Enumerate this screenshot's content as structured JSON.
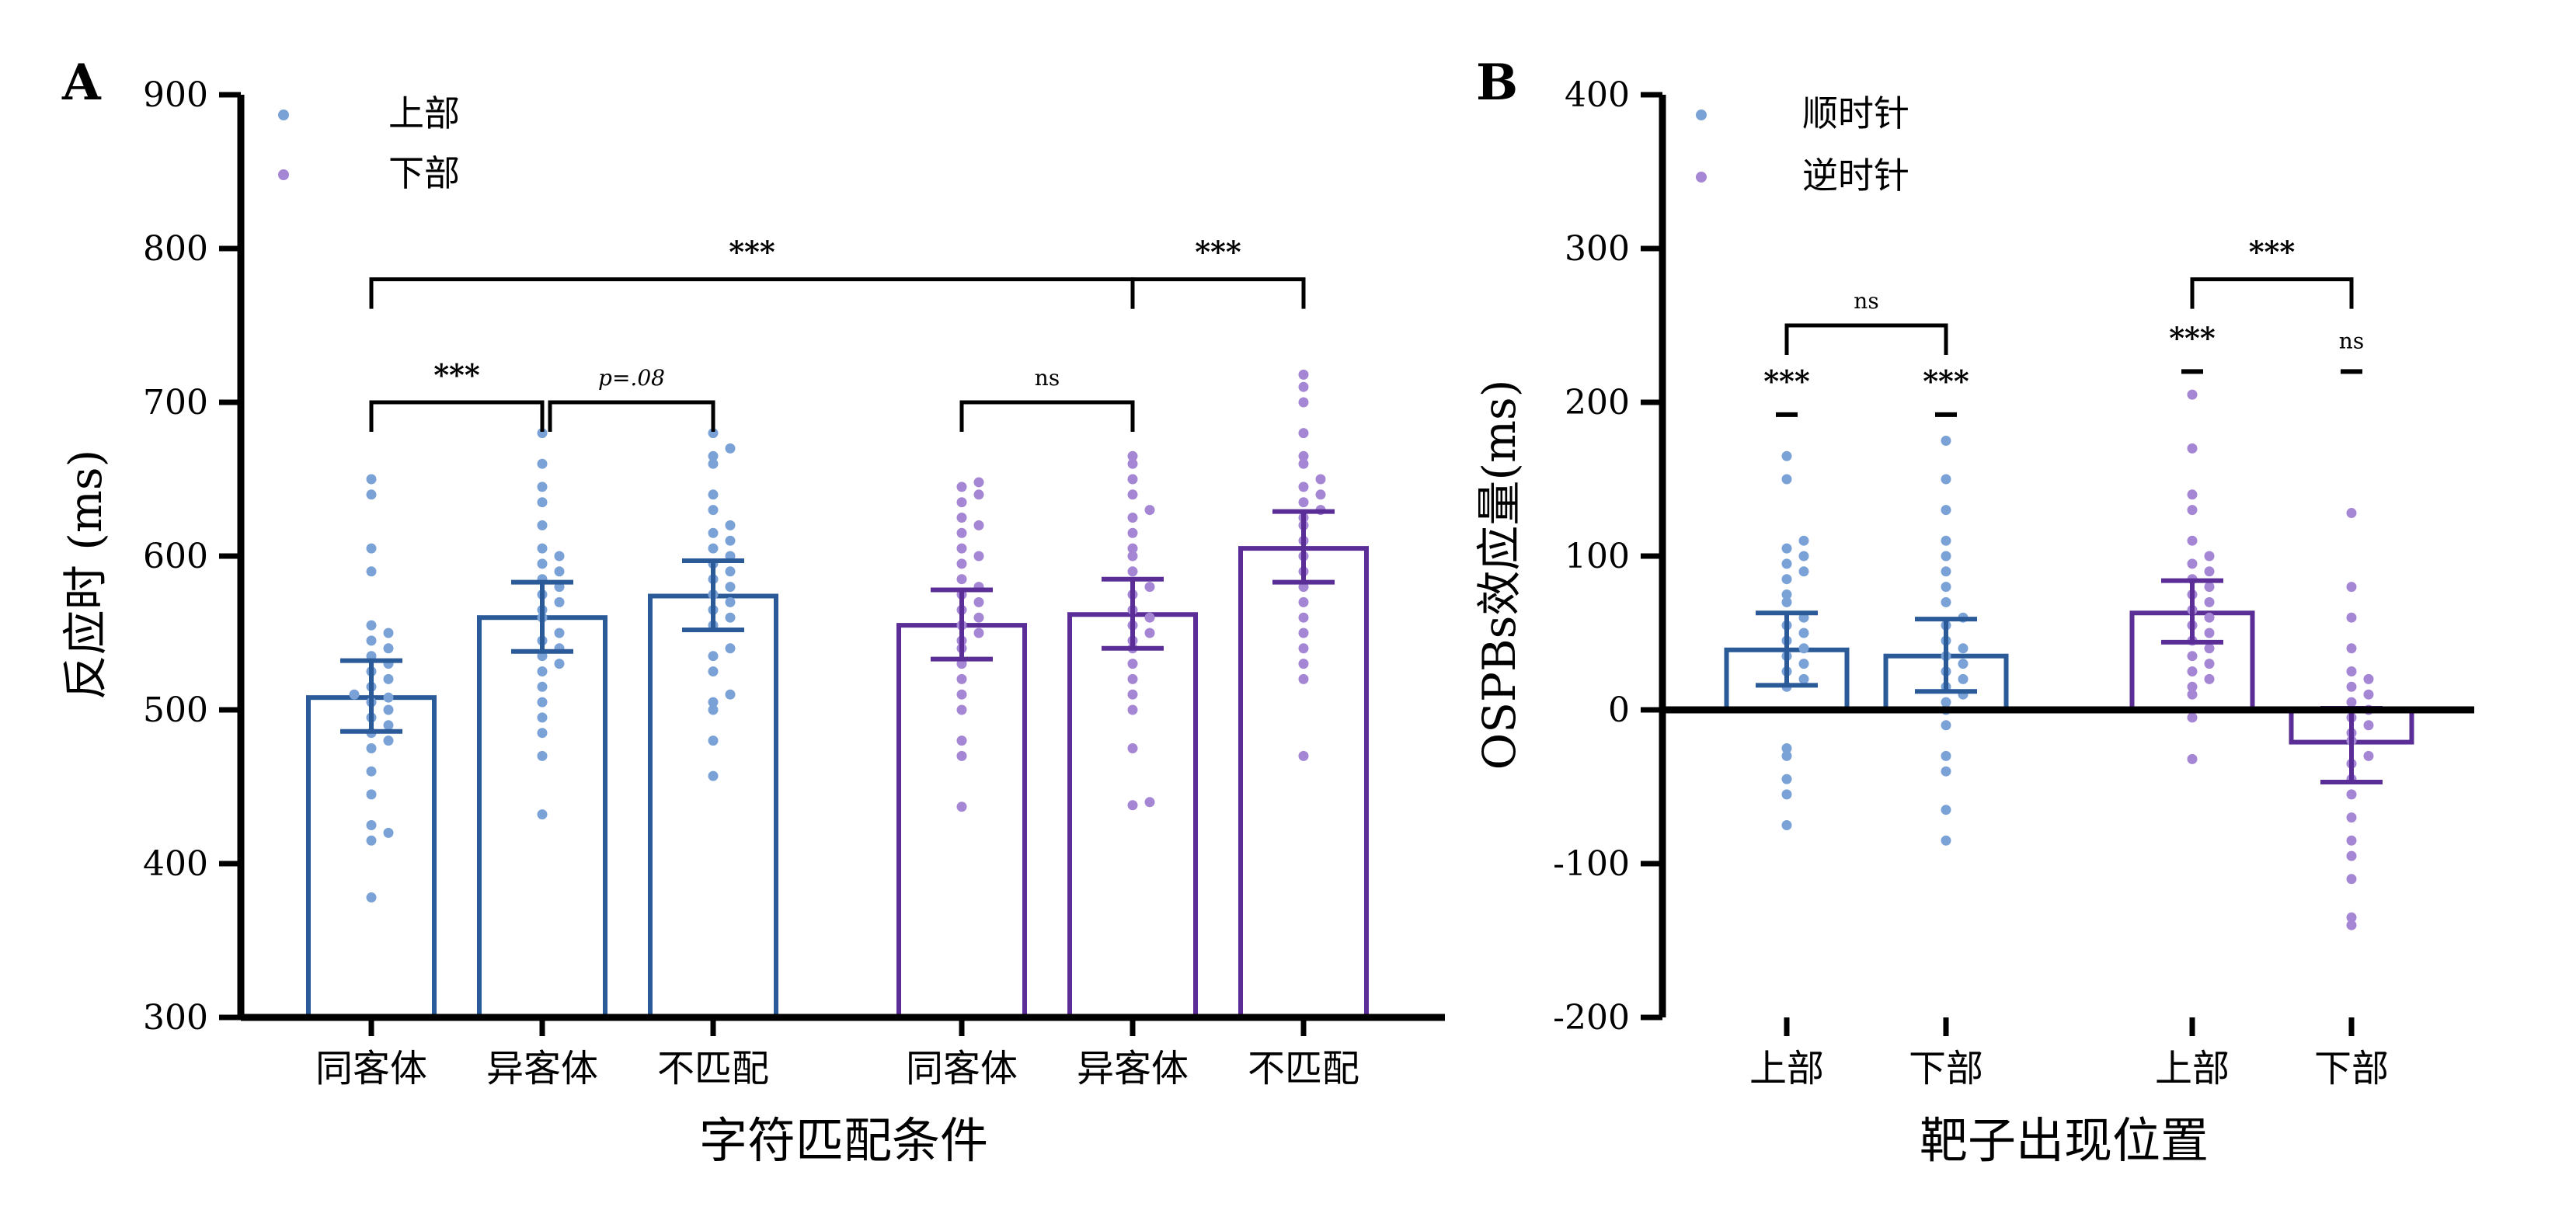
{
  "colors": {
    "blue": "#2a5a98",
    "purple": "#5a2e96",
    "blue_dot": "#7aa2d6",
    "purple_dot": "#a486d4"
  },
  "chart_data": [
    {
      "panel": "A",
      "type": "bar",
      "xlabel": "字符匹配条件",
      "ylabel": "反应时 (ms)",
      "ylim": [
        300,
        900
      ],
      "yticks": [
        300,
        400,
        500,
        600,
        700,
        800,
        900
      ],
      "legend": {
        "placement": "top-left",
        "entries": [
          "上部",
          "下部"
        ]
      },
      "groups": [
        {
          "series": "上部",
          "color": "blue",
          "categories": [
            "同客体",
            "异客体",
            "不匹配"
          ],
          "values": [
            508,
            560,
            574
          ],
          "err_low": [
            486,
            538,
            552
          ],
          "err_high": [
            532,
            583,
            597
          ]
        },
        {
          "series": "下部",
          "color": "purple",
          "categories": [
            "同客体",
            "异客体",
            "不匹配"
          ],
          "values": [
            555,
            562,
            605
          ],
          "err_low": [
            533,
            540,
            583
          ],
          "err_high": [
            578,
            585,
            629
          ]
        }
      ],
      "points": [
        [
          378,
          415,
          420,
          425,
          445,
          460,
          475,
          480,
          485,
          490,
          495,
          500,
          505,
          508,
          510,
          515,
          520,
          525,
          530,
          535,
          540,
          545,
          550,
          555,
          590,
          605,
          640,
          650
        ],
        [
          432,
          470,
          485,
          495,
          505,
          515,
          525,
          530,
          535,
          540,
          545,
          550,
          560,
          565,
          570,
          575,
          580,
          585,
          590,
          595,
          600,
          605,
          620,
          635,
          645,
          660,
          680
        ],
        [
          457,
          480,
          500,
          505,
          510,
          525,
          535,
          540,
          555,
          560,
          565,
          570,
          575,
          580,
          585,
          590,
          595,
          600,
          605,
          610,
          615,
          620,
          630,
          640,
          660,
          665,
          670,
          680
        ],
        [
          437,
          470,
          480,
          500,
          510,
          520,
          530,
          540,
          545,
          550,
          555,
          560,
          565,
          570,
          575,
          580,
          585,
          595,
          600,
          605,
          615,
          620,
          625,
          635,
          640,
          645,
          648
        ],
        [
          438,
          440,
          475,
          500,
          510,
          520,
          530,
          540,
          545,
          550,
          555,
          560,
          565,
          575,
          580,
          590,
          600,
          605,
          615,
          625,
          630,
          640,
          650,
          660,
          665
        ],
        [
          470,
          520,
          530,
          540,
          550,
          560,
          570,
          580,
          590,
          600,
          610,
          620,
          625,
          630,
          635,
          640,
          645,
          650,
          660,
          665,
          680,
          700,
          710,
          718
        ]
      ],
      "annotations": [
        {
          "text": "***",
          "from": 0,
          "to": 1,
          "y": 700
        },
        {
          "text": "p=.08",
          "from": 1,
          "to": 2,
          "y": 700
        },
        {
          "text": "***",
          "from": 0,
          "to": 4,
          "y": 780
        },
        {
          "text": "ns",
          "from": 3,
          "to": 4,
          "y": 700
        },
        {
          "text": "***",
          "from": 4,
          "to": 5,
          "y": 780
        }
      ]
    },
    {
      "panel": "B",
      "type": "bar",
      "xlabel": "靶子出现位置",
      "ylabel": "OSPBs效应量(ms)",
      "ylim": [
        -200,
        400
      ],
      "yticks": [
        -200,
        -100,
        0,
        100,
        200,
        300,
        400
      ],
      "legend": {
        "placement": "top-left",
        "entries": [
          "顺时针",
          "逆时针"
        ]
      },
      "groups": [
        {
          "series": "顺时针",
          "color": "blue",
          "categories": [
            "上部",
            "下部"
          ],
          "values": [
            39,
            35
          ],
          "err_low": [
            16,
            12
          ],
          "err_high": [
            63,
            59
          ]
        },
        {
          "series": "逆时针",
          "color": "purple",
          "categories": [
            "上部",
            "下部"
          ],
          "values": [
            63,
            -21
          ],
          "err_low": [
            44,
            -47
          ],
          "err_high": [
            84,
            1
          ]
        }
      ],
      "points": [
        [
          -75,
          -55,
          -45,
          -30,
          -25,
          15,
          20,
          25,
          30,
          35,
          40,
          45,
          50,
          55,
          60,
          70,
          75,
          85,
          90,
          95,
          100,
          105,
          110,
          150,
          165
        ],
        [
          -85,
          -65,
          -40,
          -30,
          -10,
          0,
          5,
          10,
          15,
          20,
          25,
          30,
          35,
          40,
          45,
          55,
          60,
          70,
          80,
          90,
          100,
          110,
          130,
          150,
          175
        ],
        [
          -32,
          -5,
          10,
          15,
          20,
          25,
          30,
          35,
          40,
          45,
          50,
          55,
          60,
          65,
          70,
          75,
          80,
          85,
          90,
          95,
          100,
          110,
          130,
          140,
          170,
          205
        ],
        [
          -140,
          -135,
          -110,
          -95,
          -85,
          -70,
          -55,
          -45,
          -35,
          -30,
          -20,
          -15,
          -10,
          -5,
          0,
          5,
          10,
          15,
          20,
          25,
          40,
          60,
          80,
          128
        ]
      ],
      "annotations": [
        {
          "text": "***",
          "over": 0,
          "y": 192
        },
        {
          "text": "***",
          "over": 1,
          "y": 192
        },
        {
          "text": "ns",
          "from": 0,
          "to": 1,
          "y": 250
        },
        {
          "text": "***",
          "over": 2,
          "y": 220
        },
        {
          "text": "ns",
          "over": 3,
          "y": 220
        },
        {
          "text": "***",
          "from": 2,
          "to": 3,
          "y": 280
        }
      ]
    }
  ]
}
